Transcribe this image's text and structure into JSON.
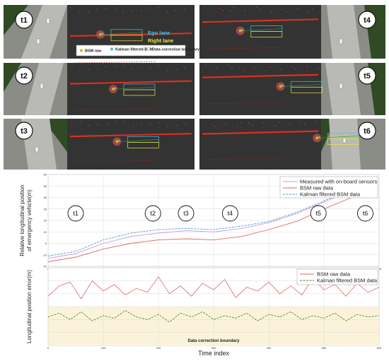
{
  "panels": [
    {
      "id": "t1",
      "label": "t1",
      "side": "left"
    },
    {
      "id": "t2",
      "label": "t2",
      "side": "left"
    },
    {
      "id": "t3",
      "label": "t3",
      "side": "left"
    },
    {
      "id": "t4",
      "label": "t4",
      "side": "right"
    },
    {
      "id": "t5",
      "label": "t5",
      "side": "right"
    },
    {
      "id": "t6",
      "label": "t6",
      "side": "right"
    }
  ],
  "inset_annotations": {
    "ego_lane": "Ego lane",
    "right_lane": "Right lane",
    "legend": {
      "bsm_raw": "BSM raw",
      "kalman": "Kalman filtered BSM",
      "boundary": "Data correction boundary"
    }
  },
  "colors": {
    "measured": "#c896dc",
    "bsm_raw": "#e06666",
    "kalman": "#3c7d3c",
    "kalman_top": "#4aa3cc",
    "ego_lane": "#3fc0e8",
    "right_lane": "#f2e634",
    "boundary_fill": "#fbf3d9"
  },
  "chart_data": [
    {
      "type": "line",
      "ylabel": "Relative longitudinal position\nof emergency vehicle(m)",
      "xlim": [
        0,
        600
      ],
      "ylim": [
        -20,
        60
      ],
      "x_ticks": [
        "0",
        "100",
        "200",
        "300",
        "400",
        "500",
        "600"
      ],
      "y_ticks": [
        "60",
        "50",
        "40",
        "30",
        "20",
        "10",
        "0",
        "-10",
        "-20"
      ],
      "legend_position": "top-right",
      "grid": true,
      "time_markers": [
        {
          "label": "t1",
          "x": 50
        },
        {
          "label": "t2",
          "x": 190
        },
        {
          "label": "t3",
          "x": 250
        },
        {
          "label": "t4",
          "x": 330
        },
        {
          "label": "t5",
          "x": 490
        },
        {
          "label": "t6",
          "x": 575
        }
      ],
      "series": [
        {
          "name": "Measured with on-board sensors",
          "style": "solid",
          "x": [
            0,
            50,
            100,
            150,
            200,
            250,
            300,
            350,
            400,
            450,
            500,
            550,
            590
          ],
          "y": [
            -13,
            -9,
            0,
            6,
            9,
            11,
            10,
            13,
            18,
            26,
            36,
            46,
            53
          ]
        },
        {
          "name": "BSM raw data",
          "style": "solid",
          "x": [
            0,
            50,
            100,
            150,
            200,
            250,
            300,
            350,
            400,
            450,
            500,
            550,
            590
          ],
          "y": [
            -16,
            -12,
            -5,
            0,
            3,
            4,
            3,
            6,
            12,
            19,
            30,
            40,
            50
          ]
        },
        {
          "name": "Kalman filtered BSM data",
          "style": "dashed",
          "x": [
            0,
            50,
            100,
            150,
            200,
            250,
            300,
            350,
            400,
            450,
            500,
            550,
            590
          ],
          "y": [
            -11,
            -7,
            3,
            9,
            12,
            13,
            12,
            15,
            19,
            27,
            37,
            47,
            54
          ]
        }
      ]
    },
    {
      "type": "line",
      "ylabel": "Longitudinal position error(m)",
      "xlabel": "Time index",
      "xlim": [
        0,
        600
      ],
      "ylim": [
        0,
        6
      ],
      "x_ticks": [
        "0",
        "100",
        "200",
        "300",
        "400",
        "500",
        "600"
      ],
      "legend_position": "top-right",
      "grid": true,
      "boundary_y": 3,
      "boundary_label": "Data correction boundary",
      "series": [
        {
          "name": "BSM raw data",
          "style": "solid",
          "x": [
            0,
            20,
            40,
            60,
            80,
            100,
            120,
            140,
            160,
            180,
            200,
            220,
            240,
            260,
            280,
            300,
            320,
            340,
            360,
            380,
            400,
            420,
            440,
            460,
            480,
            500,
            520,
            540,
            560,
            580,
            600
          ],
          "y": [
            3.8,
            4.6,
            4.9,
            3.6,
            5.0,
            4.2,
            4.7,
            3.9,
            4.4,
            4.1,
            5.3,
            4.0,
            4.6,
            3.8,
            4.8,
            4.3,
            5.1,
            3.7,
            4.5,
            4.2,
            4.9,
            4.0,
            4.6,
            3.9,
            5.2,
            4.3,
            4.7,
            3.8,
            4.8,
            4.1,
            4.5
          ]
        },
        {
          "name": "Kalman filtered BSM data",
          "style": "dashed",
          "x": [
            0,
            20,
            40,
            60,
            80,
            100,
            120,
            140,
            160,
            180,
            200,
            220,
            240,
            260,
            280,
            300,
            320,
            340,
            360,
            380,
            400,
            420,
            440,
            460,
            480,
            500,
            520,
            540,
            560,
            580,
            600
          ],
          "y": [
            2.2,
            2.5,
            2.0,
            2.6,
            1.9,
            2.3,
            2.1,
            2.7,
            2.2,
            2.0,
            2.4,
            1.8,
            2.5,
            2.2,
            2.6,
            2.0,
            2.3,
            2.1,
            2.5,
            1.9,
            2.4,
            2.2,
            2.6,
            2.0,
            2.3,
            2.1,
            2.5,
            1.9,
            2.4,
            2.2,
            2.3
          ]
        }
      ]
    }
  ]
}
